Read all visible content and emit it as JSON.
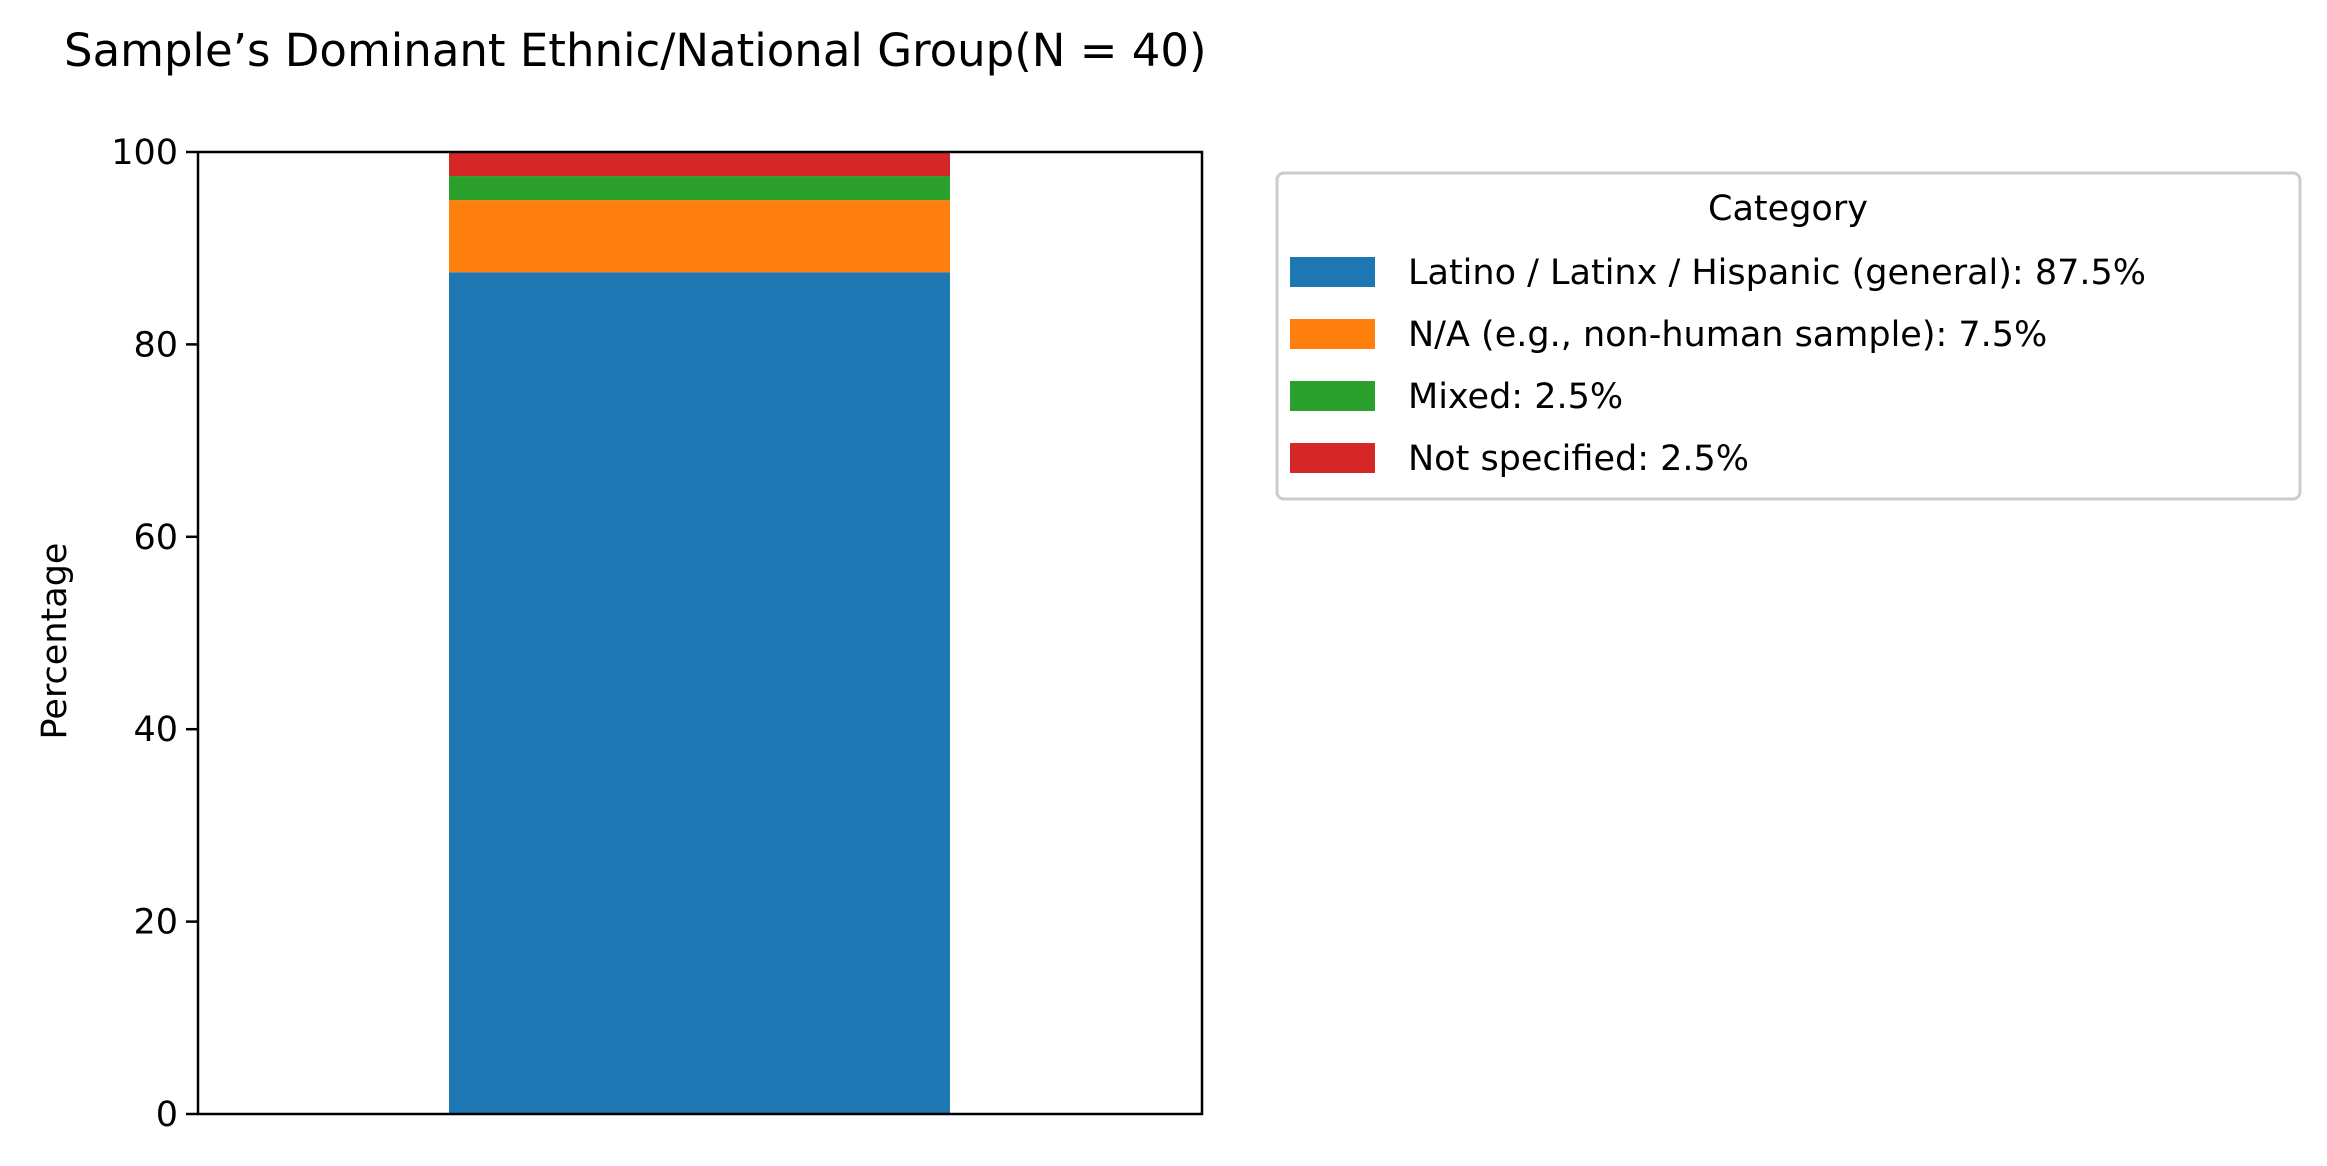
{
  "chart_data": {
    "type": "bar",
    "stacked": true,
    "title": "Sample’s Dominant Ethnic/National Group(N = 40)",
    "xlabel": "",
    "ylabel": "Percentage",
    "ylim": [
      0,
      100
    ],
    "yticks": [
      0,
      20,
      40,
      60,
      80,
      100
    ],
    "categories": [
      ""
    ],
    "series": [
      {
        "name": "Latino / Latinx / Hispanic (general)",
        "values": [
          87.5
        ],
        "color": "#1f77b4",
        "legend_label": "Latino / Latinx / Hispanic (general): 87.5%"
      },
      {
        "name": "N/A (e.g., non-human sample)",
        "values": [
          7.5
        ],
        "color": "#ff7f0e",
        "legend_label": "N/A (e.g., non-human sample): 7.5%"
      },
      {
        "name": "Mixed",
        "values": [
          2.5
        ],
        "color": "#2ca02c",
        "legend_label": "Mixed: 2.5%"
      },
      {
        "name": "Not specified",
        "values": [
          2.5
        ],
        "color": "#d62728",
        "legend_label": "Not specified: 2.5%"
      }
    ],
    "legend": {
      "title": "Category",
      "placement": "outside-right"
    },
    "grid": false
  }
}
